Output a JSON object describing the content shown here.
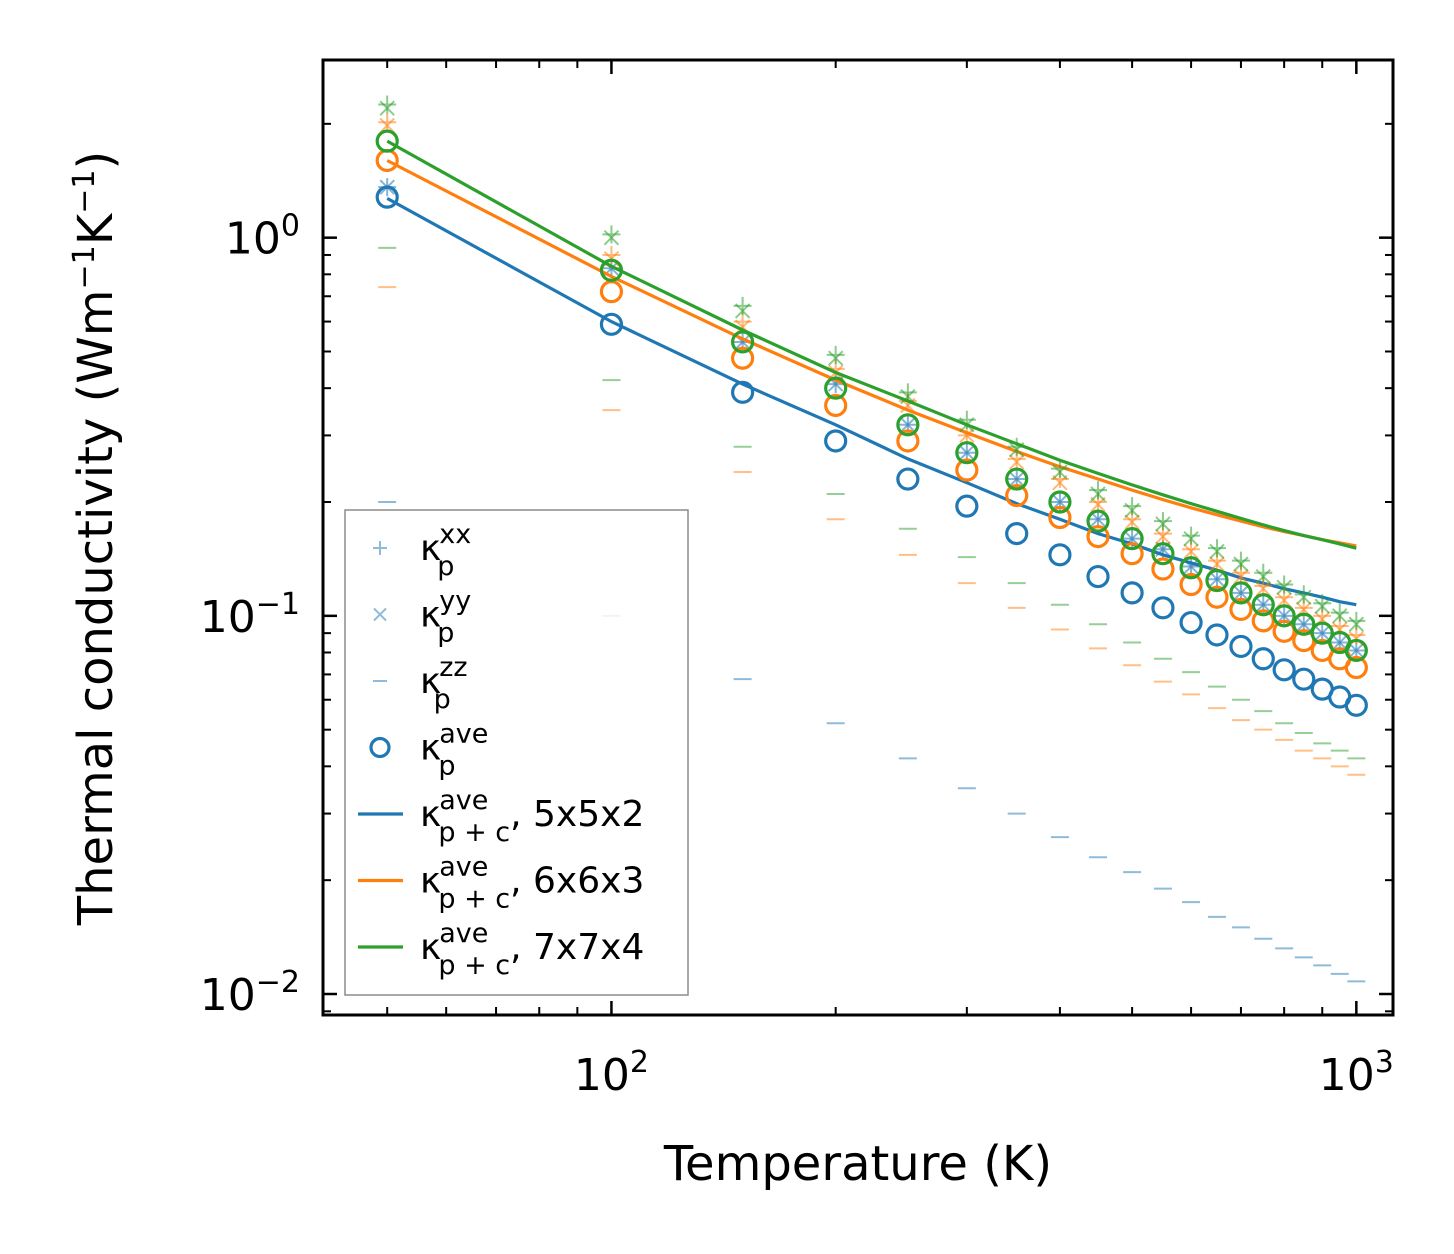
{
  "chart_data": {
    "type": "scatter",
    "title": "",
    "xlabel": "Temperature (K)",
    "ylabel": "Thermal conductivity (Wm",
    "ylabel_unit_parts": [
      "−1",
      "K",
      "−1",
      ")"
    ],
    "xscale": "log",
    "yscale": "log",
    "xlim": [
      41,
      1120
    ],
    "ylim": [
      0.0088,
      2.95
    ],
    "x_ticks": [
      {
        "value": 100,
        "base": "10",
        "exp": "2"
      },
      {
        "value": 1000,
        "base": "10",
        "exp": "3"
      }
    ],
    "y_ticks": [
      {
        "value": 0.01,
        "base": "10",
        "exp": "−2"
      },
      {
        "value": 0.1,
        "base": "10",
        "exp": "−1"
      },
      {
        "value": 1,
        "base": "10",
        "exp": "0"
      }
    ],
    "x": [
      50,
      100,
      150,
      200,
      250,
      300,
      350,
      400,
      450,
      500,
      550,
      600,
      650,
      700,
      750,
      800,
      850,
      900,
      950,
      1000
    ],
    "legend_position": "lower-left",
    "legend": [
      {
        "key": "kxx",
        "marker": "plus",
        "label": "κ",
        "sub": "p",
        "sup": "xx",
        "suffix": ""
      },
      {
        "key": "kyy",
        "marker": "x",
        "label": "κ",
        "sub": "p",
        "sup": "yy",
        "suffix": ""
      },
      {
        "key": "kzz",
        "marker": "dash",
        "label": "κ",
        "sub": "p",
        "sup": "zz",
        "suffix": ""
      },
      {
        "key": "kave",
        "marker": "circle",
        "label": "κ",
        "sub": "p",
        "sup": "ave",
        "suffix": ""
      },
      {
        "key": "line1",
        "marker": "line",
        "label": "κ",
        "sub": "p + c",
        "sup": "ave",
        "suffix": ", 5x5x2"
      },
      {
        "key": "line2",
        "marker": "line",
        "label": "κ",
        "sub": "p + c",
        "sup": "ave",
        "suffix": ", 6x6x3"
      },
      {
        "key": "line3",
        "marker": "line",
        "label": "κ",
        "sub": "p + c",
        "sup": "ave",
        "suffix": ", 7x7x4"
      }
    ],
    "series": [
      {
        "name": "5x5x2",
        "color": "#1f77b4",
        "kxx": [
          1.36,
          0.83,
          0.53,
          0.41,
          0.32,
          0.27,
          0.23,
          0.2,
          0.18,
          0.16,
          0.15,
          0.135,
          0.125,
          0.115,
          0.107,
          0.1,
          0.095,
          0.09,
          0.085,
          0.081
        ],
        "kyy": [
          1.36,
          0.83,
          0.53,
          0.41,
          0.32,
          0.27,
          0.23,
          0.2,
          0.18,
          0.16,
          0.15,
          0.135,
          0.125,
          0.115,
          0.107,
          0.1,
          0.095,
          0.09,
          0.085,
          0.081
        ],
        "kzz": [
          0.2,
          0.1,
          0.068,
          0.052,
          0.042,
          0.035,
          0.03,
          0.026,
          0.023,
          0.021,
          0.019,
          0.0175,
          0.016,
          0.015,
          0.014,
          0.0132,
          0.0125,
          0.0119,
          0.0113,
          0.0108
        ],
        "kave": [
          1.28,
          0.59,
          0.39,
          0.29,
          0.23,
          0.195,
          0.165,
          0.145,
          0.127,
          0.115,
          0.105,
          0.096,
          0.089,
          0.083,
          0.077,
          0.072,
          0.068,
          0.064,
          0.061,
          0.058
        ],
        "line": [
          1.27,
          0.6,
          0.41,
          0.32,
          0.26,
          0.225,
          0.198,
          0.18,
          0.165,
          0.155,
          0.145,
          0.138,
          0.132,
          0.126,
          0.122,
          0.118,
          0.115,
          0.112,
          0.109,
          0.107
        ]
      },
      {
        "name": "6x6x3",
        "color": "#ff7f0e",
        "kxx": [
          2.02,
          0.9,
          0.6,
          0.45,
          0.37,
          0.3,
          0.26,
          0.23,
          0.2,
          0.18,
          0.165,
          0.15,
          0.14,
          0.13,
          0.12,
          0.112,
          0.105,
          0.1,
          0.094,
          0.089
        ],
        "kyy": [
          1.98,
          0.88,
          0.58,
          0.44,
          0.36,
          0.3,
          0.255,
          0.225,
          0.197,
          0.177,
          0.162,
          0.148,
          0.137,
          0.127,
          0.118,
          0.11,
          0.104,
          0.098,
          0.092,
          0.087
        ],
        "kzz": [
          0.74,
          0.35,
          0.24,
          0.18,
          0.145,
          0.122,
          0.105,
          0.092,
          0.082,
          0.074,
          0.067,
          0.062,
          0.057,
          0.053,
          0.05,
          0.047,
          0.044,
          0.042,
          0.04,
          0.038
        ],
        "kave": [
          1.6,
          0.72,
          0.48,
          0.36,
          0.29,
          0.243,
          0.208,
          0.182,
          0.162,
          0.146,
          0.133,
          0.121,
          0.112,
          0.104,
          0.097,
          0.091,
          0.086,
          0.081,
          0.077,
          0.073
        ],
        "line": [
          1.6,
          0.79,
          0.54,
          0.42,
          0.35,
          0.305,
          0.272,
          0.248,
          0.23,
          0.215,
          0.203,
          0.193,
          0.185,
          0.178,
          0.172,
          0.167,
          0.163,
          0.159,
          0.156,
          0.153
        ]
      },
      {
        "name": "7x7x4",
        "color": "#2ca02c",
        "kxx": [
          2.25,
          1.02,
          0.66,
          0.49,
          0.39,
          0.33,
          0.28,
          0.245,
          0.215,
          0.195,
          0.178,
          0.163,
          0.151,
          0.14,
          0.13,
          0.121,
          0.114,
          0.108,
          0.102,
          0.097
        ],
        "kyy": [
          2.2,
          1.0,
          0.64,
          0.48,
          0.38,
          0.32,
          0.275,
          0.24,
          0.21,
          0.19,
          0.175,
          0.16,
          0.148,
          0.137,
          0.127,
          0.119,
          0.112,
          0.106,
          0.1,
          0.095
        ],
        "kzz": [
          0.94,
          0.42,
          0.28,
          0.21,
          0.17,
          0.143,
          0.122,
          0.107,
          0.095,
          0.085,
          0.077,
          0.071,
          0.065,
          0.06,
          0.056,
          0.052,
          0.049,
          0.046,
          0.044,
          0.042
        ],
        "kave": [
          1.8,
          0.82,
          0.53,
          0.4,
          0.32,
          0.27,
          0.23,
          0.2,
          0.178,
          0.16,
          0.146,
          0.134,
          0.124,
          0.115,
          0.107,
          0.1,
          0.095,
          0.09,
          0.085,
          0.081
        ],
        "line": [
          1.8,
          0.84,
          0.57,
          0.44,
          0.37,
          0.32,
          0.285,
          0.258,
          0.238,
          0.222,
          0.209,
          0.198,
          0.189,
          0.181,
          0.174,
          0.168,
          0.163,
          0.159,
          0.155,
          0.151
        ]
      }
    ]
  }
}
